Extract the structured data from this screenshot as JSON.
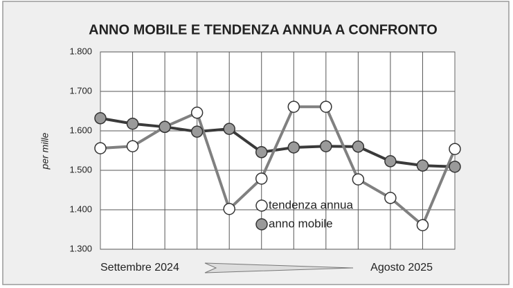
{
  "chart_data": {
    "type": "line",
    "title": "ANNO MOBILE E TENDENZA ANNUA A CONFRONTO",
    "y_label": "per mille",
    "x_start_label": "Settembre 2024",
    "x_end_label": "Agosto 2025",
    "categories": [
      null,
      null,
      null,
      null,
      null,
      null,
      null,
      null,
      null,
      null,
      null,
      null
    ],
    "series": [
      {
        "name": "tendenza annua",
        "color": "#808080",
        "marker_fill": "#ffffff",
        "values": [
          1556,
          1561,
          1610,
          1646,
          1402,
          1479,
          1661,
          1661,
          1477,
          1430,
          1361,
          1554
        ]
      },
      {
        "name": "anno mobile",
        "color": "#3a3a3a",
        "marker_fill": "#9a9a9a",
        "values": [
          1632,
          1618,
          1610,
          1598,
          1605,
          1546,
          1558,
          1561,
          1560,
          1523,
          1512,
          1509
        ]
      }
    ],
    "ylim": [
      1300,
      1800
    ],
    "yticks": [
      {
        "value": 1300,
        "label": "1.300"
      },
      {
        "value": 1400,
        "label": "1.400"
      },
      {
        "value": 1500,
        "label": "1.500"
      },
      {
        "value": 1600,
        "label": "1.600"
      },
      {
        "value": 1700,
        "label": "1.700"
      },
      {
        "value": 1800,
        "label": "1.800"
      }
    ],
    "grid": true,
    "legend": "center"
  }
}
